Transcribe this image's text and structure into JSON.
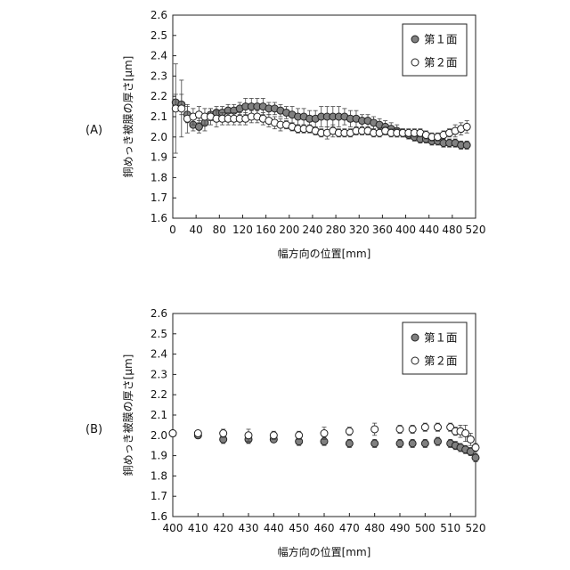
{
  "chart_data": [
    {
      "type": "scatter",
      "panel_label": "(A)",
      "xlabel": "幅方向の位置[mm]",
      "ylabel": "銅めっき被膜の厚さ[μm]",
      "xlim": [
        0,
        520
      ],
      "ylim": [
        1.6,
        2.6
      ],
      "xticks": [
        0,
        40,
        80,
        120,
        160,
        200,
        240,
        280,
        320,
        360,
        400,
        440,
        480,
        520
      ],
      "yticks": [
        1.6,
        1.7,
        1.8,
        1.9,
        2.0,
        2.1,
        2.2,
        2.3,
        2.4,
        2.5,
        2.6
      ],
      "ytick_labels": [
        "1.6",
        "1.7",
        "1.8",
        "1.9",
        "2.0",
        "2.1",
        "2.2",
        "2.3",
        "2.4",
        "2.5",
        "2.6"
      ],
      "grid": false,
      "legend_position": "top-right",
      "series": [
        {
          "name": "第１面",
          "marker": "filled-circle",
          "color": "#808080",
          "x": [
            5,
            15,
            25,
            35,
            45,
            55,
            65,
            75,
            85,
            95,
            105,
            115,
            125,
            135,
            145,
            155,
            165,
            175,
            185,
            195,
            205,
            215,
            225,
            235,
            245,
            255,
            265,
            275,
            285,
            295,
            305,
            315,
            325,
            335,
            345,
            355,
            365,
            375,
            385,
            395,
            405,
            415,
            425,
            435,
            445,
            455,
            465,
            475,
            485,
            495,
            505
          ],
          "y": [
            2.17,
            2.16,
            2.11,
            2.06,
            2.05,
            2.07,
            2.11,
            2.12,
            2.12,
            2.13,
            2.13,
            2.14,
            2.15,
            2.15,
            2.15,
            2.15,
            2.14,
            2.14,
            2.13,
            2.12,
            2.11,
            2.1,
            2.1,
            2.09,
            2.09,
            2.1,
            2.1,
            2.1,
            2.1,
            2.1,
            2.09,
            2.09,
            2.08,
            2.08,
            2.07,
            2.06,
            2.05,
            2.04,
            2.03,
            2.02,
            2.01,
            2.0,
            1.99,
            1.99,
            1.98,
            1.98,
            1.97,
            1.97,
            1.97,
            1.96,
            1.96
          ],
          "error": [
            0.04,
            0.05,
            0.04,
            0.03,
            0.03,
            0.04,
            0.03,
            0.03,
            0.03,
            0.03,
            0.03,
            0.03,
            0.04,
            0.04,
            0.04,
            0.04,
            0.03,
            0.03,
            0.03,
            0.03,
            0.04,
            0.04,
            0.04,
            0.04,
            0.04,
            0.05,
            0.05,
            0.05,
            0.05,
            0.04,
            0.04,
            0.04,
            0.03,
            0.03,
            0.03,
            0.03,
            0.03,
            0.03,
            0.03,
            0.02,
            0.02,
            0.02,
            0.02,
            0.02,
            0.02,
            0.02,
            0.02,
            0.02,
            0.02,
            0.02,
            0.02
          ]
        },
        {
          "name": "第２面",
          "marker": "open-circle",
          "color": "#ffffff",
          "x": [
            5,
            15,
            25,
            35,
            45,
            55,
            65,
            75,
            85,
            95,
            105,
            115,
            125,
            135,
            145,
            155,
            165,
            175,
            185,
            195,
            205,
            215,
            225,
            235,
            245,
            255,
            265,
            275,
            285,
            295,
            305,
            315,
            325,
            335,
            345,
            355,
            365,
            375,
            385,
            395,
            405,
            415,
            425,
            435,
            445,
            455,
            465,
            475,
            485,
            495,
            505
          ],
          "y": [
            2.14,
            2.14,
            2.09,
            2.1,
            2.11,
            2.1,
            2.1,
            2.09,
            2.09,
            2.09,
            2.09,
            2.09,
            2.09,
            2.1,
            2.1,
            2.09,
            2.08,
            2.07,
            2.06,
            2.06,
            2.05,
            2.04,
            2.04,
            2.04,
            2.03,
            2.02,
            2.02,
            2.03,
            2.02,
            2.02,
            2.02,
            2.03,
            2.03,
            2.03,
            2.02,
            2.02,
            2.03,
            2.02,
            2.02,
            2.02,
            2.02,
            2.02,
            2.02,
            2.01,
            2.0,
            2.0,
            2.01,
            2.02,
            2.03,
            2.04,
            2.05
          ],
          "error": [
            0.22,
            0.14,
            0.07,
            0.04,
            0.04,
            0.04,
            0.04,
            0.04,
            0.03,
            0.03,
            0.03,
            0.03,
            0.03,
            0.03,
            0.03,
            0.03,
            0.03,
            0.03,
            0.03,
            0.02,
            0.02,
            0.02,
            0.02,
            0.02,
            0.02,
            0.02,
            0.03,
            0.03,
            0.02,
            0.02,
            0.02,
            0.02,
            0.02,
            0.02,
            0.02,
            0.02,
            0.02,
            0.02,
            0.02,
            0.02,
            0.02,
            0.02,
            0.02,
            0.02,
            0.02,
            0.02,
            0.02,
            0.02,
            0.03,
            0.03,
            0.03
          ]
        }
      ]
    },
    {
      "type": "scatter",
      "panel_label": "(B)",
      "xlabel": "幅方向の位置[mm]",
      "ylabel": "銅めっき被膜の厚さ[μm]",
      "xlim": [
        400,
        520
      ],
      "ylim": [
        1.6,
        2.6
      ],
      "xticks": [
        400,
        410,
        420,
        430,
        440,
        450,
        460,
        470,
        480,
        490,
        500,
        510,
        520
      ],
      "yticks": [
        1.6,
        1.7,
        1.8,
        1.9,
        2.0,
        2.1,
        2.2,
        2.3,
        2.4,
        2.5,
        2.6
      ],
      "ytick_labels": [
        "1.6",
        "1.7",
        "1.8",
        "1.9",
        "2.0",
        "2.1",
        "2.2",
        "2.3",
        "2.4",
        "2.5",
        "2.6"
      ],
      "grid": false,
      "legend_position": "top-right",
      "series": [
        {
          "name": "第１面",
          "marker": "filled-circle",
          "color": "#808080",
          "x": [
            400,
            410,
            420,
            430,
            440,
            450,
            460,
            470,
            480,
            490,
            495,
            500,
            505,
            510,
            512,
            514,
            516,
            518,
            520
          ],
          "y": [
            2.01,
            2.0,
            1.98,
            1.98,
            1.98,
            1.97,
            1.97,
            1.96,
            1.96,
            1.96,
            1.96,
            1.96,
            1.97,
            1.96,
            1.95,
            1.94,
            1.93,
            1.92,
            1.89
          ],
          "error": [
            0.01,
            0.01,
            0.02,
            0.02,
            0.01,
            0.02,
            0.02,
            0.02,
            0.02,
            0.02,
            0.02,
            0.02,
            0.02,
            0.02,
            0.02,
            0.02,
            0.02,
            0.02,
            0.02
          ]
        },
        {
          "name": "第２面",
          "marker": "open-circle",
          "color": "#ffffff",
          "x": [
            400,
            410,
            420,
            430,
            440,
            450,
            460,
            470,
            480,
            490,
            495,
            500,
            505,
            510,
            512,
            514,
            516,
            518,
            520
          ],
          "y": [
            2.01,
            2.01,
            2.01,
            2.0,
            2.0,
            2.0,
            2.01,
            2.02,
            2.03,
            2.03,
            2.03,
            2.04,
            2.04,
            2.04,
            2.02,
            2.02,
            2.01,
            1.98,
            1.94
          ],
          "error": [
            0.01,
            0.01,
            0.02,
            0.03,
            0.02,
            0.02,
            0.03,
            0.02,
            0.03,
            0.02,
            0.02,
            0.02,
            0.02,
            0.02,
            0.02,
            0.03,
            0.04,
            0.03,
            0.02
          ]
        }
      ]
    }
  ]
}
